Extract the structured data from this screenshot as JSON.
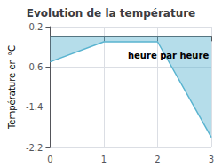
{
  "chart_data": {
    "type": "area",
    "title": "Evolution de la température",
    "y_label": "Température en °C",
    "x": [
      0,
      1,
      2,
      3
    ],
    "series": [
      {
        "name": "Température",
        "color": "#5ab4d0",
        "values": [
          -0.5,
          -0.1,
          -0.1,
          -2.0
        ]
      }
    ],
    "xlim": [
      0,
      3
    ],
    "xticks": [
      0,
      1,
      2,
      3
    ],
    "ylim": [
      -2.2,
      0.2
    ],
    "yticks": [
      0.2,
      -0.6,
      -1.4,
      -2.2
    ],
    "grid": true,
    "annotations": [
      {
        "text": "heure par heure",
        "x": 2.2,
        "y": -0.38
      }
    ]
  }
}
